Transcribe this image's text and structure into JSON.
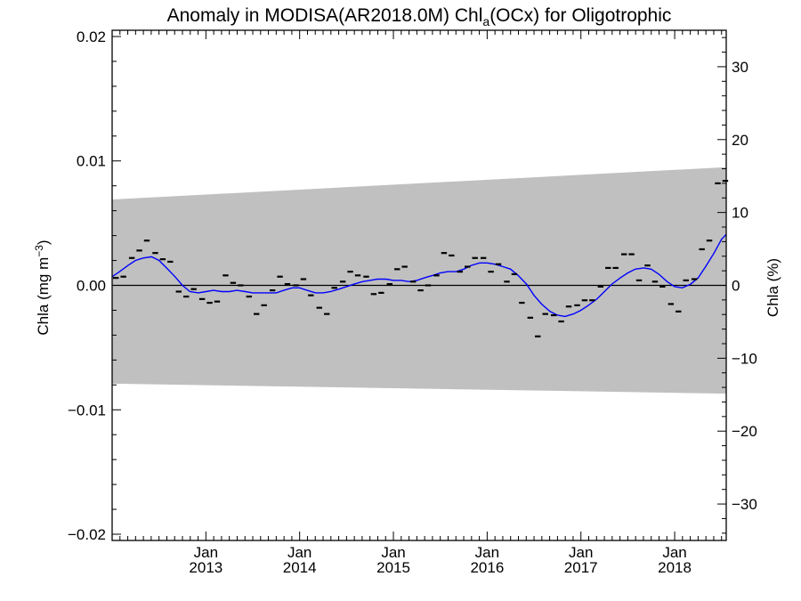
{
  "chart_data": {
    "type": "line",
    "title_main": "Anomaly in MODISA(AR2018.0M) Chl",
    "title_sub": "a",
    "title_tail": "(OCx) for Oligotrophic",
    "ylabel_left_main": "Chla (mg m",
    "ylabel_left_sup": "−3",
    "ylabel_left_close": ")",
    "ylabel_right": "Chla (%)",
    "x_unit": "decimal year",
    "xlim": [
      2012.0,
      2018.55
    ],
    "ylim_left": [
      -0.0205,
      0.0205
    ],
    "ylim_right": [
      -35,
      35
    ],
    "yticks_left": [
      {
        "value": 0.02,
        "label": "0.02"
      },
      {
        "value": 0.01,
        "label": "0.01"
      },
      {
        "value": 0.0,
        "label": "0.00"
      },
      {
        "value": -0.01,
        "label": "−0.01"
      },
      {
        "value": -0.02,
        "label": "−0.02"
      }
    ],
    "yticks_right": [
      {
        "value": 30,
        "label": "30"
      },
      {
        "value": 20,
        "label": "20"
      },
      {
        "value": 10,
        "label": "10"
      },
      {
        "value": 0,
        "label": "0"
      },
      {
        "value": -10,
        "label": "−10"
      },
      {
        "value": -20,
        "label": "−20"
      },
      {
        "value": -30,
        "label": "−30"
      }
    ],
    "xticks": [
      {
        "value": 2013.0,
        "month": "Jan",
        "year": "2013"
      },
      {
        "value": 2014.0,
        "month": "Jan",
        "year": "2014"
      },
      {
        "value": 2015.0,
        "month": "Jan",
        "year": "2015"
      },
      {
        "value": 2016.0,
        "month": "Jan",
        "year": "2016"
      },
      {
        "value": 2017.0,
        "month": "Jan",
        "year": "2017"
      },
      {
        "value": 2018.0,
        "month": "Jan",
        "year": "2018"
      }
    ],
    "uncertainty_band": {
      "color": "#c0c0c0",
      "x": [
        2012.0,
        2018.55
      ],
      "upper": [
        0.0069,
        0.0095
      ],
      "lower": [
        -0.0079,
        -0.0087
      ]
    },
    "series": [
      {
        "kind": "markers",
        "color": "#000000",
        "x": [
          2012.04,
          2012.12,
          2012.21,
          2012.29,
          2012.37,
          2012.46,
          2012.54,
          2012.62,
          2012.71,
          2012.79,
          2012.87,
          2012.96,
          2013.04,
          2013.12,
          2013.21,
          2013.29,
          2013.37,
          2013.46,
          2013.54,
          2013.62,
          2013.71,
          2013.79,
          2013.87,
          2013.96,
          2014.04,
          2014.12,
          2014.21,
          2014.29,
          2014.37,
          2014.46,
          2014.54,
          2014.62,
          2014.71,
          2014.79,
          2014.87,
          2014.96,
          2015.04,
          2015.12,
          2015.21,
          2015.29,
          2015.37,
          2015.46,
          2015.54,
          2015.62,
          2015.71,
          2015.79,
          2015.87,
          2015.96,
          2016.04,
          2016.12,
          2016.21,
          2016.29,
          2016.37,
          2016.46,
          2016.54,
          2016.62,
          2016.71,
          2016.79,
          2016.87,
          2016.96,
          2017.04,
          2017.12,
          2017.21,
          2017.29,
          2017.37,
          2017.46,
          2017.54,
          2017.62,
          2017.71,
          2017.79,
          2017.87,
          2017.96,
          2018.04,
          2018.12,
          2018.21,
          2018.29,
          2018.37,
          2018.46,
          2018.54
        ],
        "y": [
          0.0006,
          0.0007,
          0.0022,
          0.0028,
          0.0036,
          0.0026,
          0.0021,
          0.0019,
          -0.0005,
          -0.0009,
          -0.0003,
          -0.0011,
          -0.0014,
          -0.0013,
          0.0008,
          0.0002,
          0.0,
          -0.0009,
          -0.0023,
          -0.0016,
          -0.0004,
          0.0007,
          0.0001,
          0.0,
          0.0005,
          -0.0008,
          -0.0018,
          -0.0023,
          -0.0002,
          0.0003,
          0.0011,
          0.0008,
          0.0007,
          -0.0007,
          -0.0006,
          0.0001,
          0.0013,
          0.0015,
          0.0003,
          -0.0004,
          0.0,
          0.0008,
          0.0026,
          0.0024,
          0.0011,
          0.0015,
          0.0022,
          0.0022,
          0.0011,
          0.0017,
          0.0003,
          0.0009,
          -0.0014,
          -0.0026,
          -0.0041,
          -0.0023,
          -0.0024,
          -0.0029,
          -0.0017,
          -0.0016,
          -0.0012,
          -0.0012,
          -0.0001,
          0.0014,
          0.0014,
          0.0025,
          0.0025,
          0.0004,
          0.0016,
          0.0003,
          -0.0001,
          -0.0015,
          -0.0021,
          0.0004,
          0.0005,
          0.0029,
          0.0036,
          0.0082,
          0.0084
        ]
      },
      {
        "kind": "line",
        "color": "#0000ff",
        "x": [
          2012.0,
          2012.08,
          2012.17,
          2012.25,
          2012.33,
          2012.42,
          2012.5,
          2012.58,
          2012.67,
          2012.75,
          2012.83,
          2012.92,
          2013.0,
          2013.08,
          2013.17,
          2013.25,
          2013.33,
          2013.42,
          2013.5,
          2013.58,
          2013.67,
          2013.75,
          2013.83,
          2013.92,
          2014.0,
          2014.08,
          2014.17,
          2014.25,
          2014.33,
          2014.42,
          2014.5,
          2014.58,
          2014.67,
          2014.75,
          2014.83,
          2014.92,
          2015.0,
          2015.08,
          2015.17,
          2015.25,
          2015.33,
          2015.42,
          2015.5,
          2015.58,
          2015.67,
          2015.75,
          2015.83,
          2015.92,
          2016.0,
          2016.08,
          2016.17,
          2016.25,
          2016.33,
          2016.42,
          2016.5,
          2016.58,
          2016.67,
          2016.75,
          2016.83,
          2016.92,
          2017.0,
          2017.08,
          2017.17,
          2017.25,
          2017.33,
          2017.42,
          2017.5,
          2017.58,
          2017.67,
          2017.75,
          2017.83,
          2017.92,
          2018.0,
          2018.08,
          2018.17,
          2018.25,
          2018.33,
          2018.42,
          2018.5,
          2018.55
        ],
        "y": [
          0.0007,
          0.0011,
          0.0016,
          0.002,
          0.0022,
          0.0023,
          0.002,
          0.0014,
          0.0007,
          0.0,
          -0.0005,
          -0.0006,
          -0.0005,
          -0.0004,
          -0.0005,
          -0.0005,
          -0.0004,
          -0.0005,
          -0.0006,
          -0.0006,
          -0.0006,
          -0.0006,
          -0.0004,
          -0.0002,
          -0.0002,
          -0.0004,
          -0.0006,
          -0.0006,
          -0.0005,
          -0.0003,
          -0.0001,
          0.0001,
          0.0003,
          0.0004,
          0.0005,
          0.0005,
          0.0004,
          0.0004,
          0.0003,
          0.0004,
          0.0006,
          0.0008,
          0.001,
          0.0011,
          0.0011,
          0.0013,
          0.0016,
          0.0018,
          0.0018,
          0.0017,
          0.0015,
          0.0013,
          0.0008,
          0.0001,
          -0.0008,
          -0.0015,
          -0.0021,
          -0.0024,
          -0.0025,
          -0.0023,
          -0.002,
          -0.0016,
          -0.0011,
          -0.0005,
          0.0001,
          0.0006,
          0.001,
          0.0013,
          0.0014,
          0.0013,
          0.0009,
          0.0003,
          -0.0001,
          -0.0002,
          0.0001,
          0.0006,
          0.0015,
          0.0026,
          0.0037,
          0.0041
        ]
      }
    ],
    "zero_line": true,
    "grid": false,
    "legend": "none"
  }
}
